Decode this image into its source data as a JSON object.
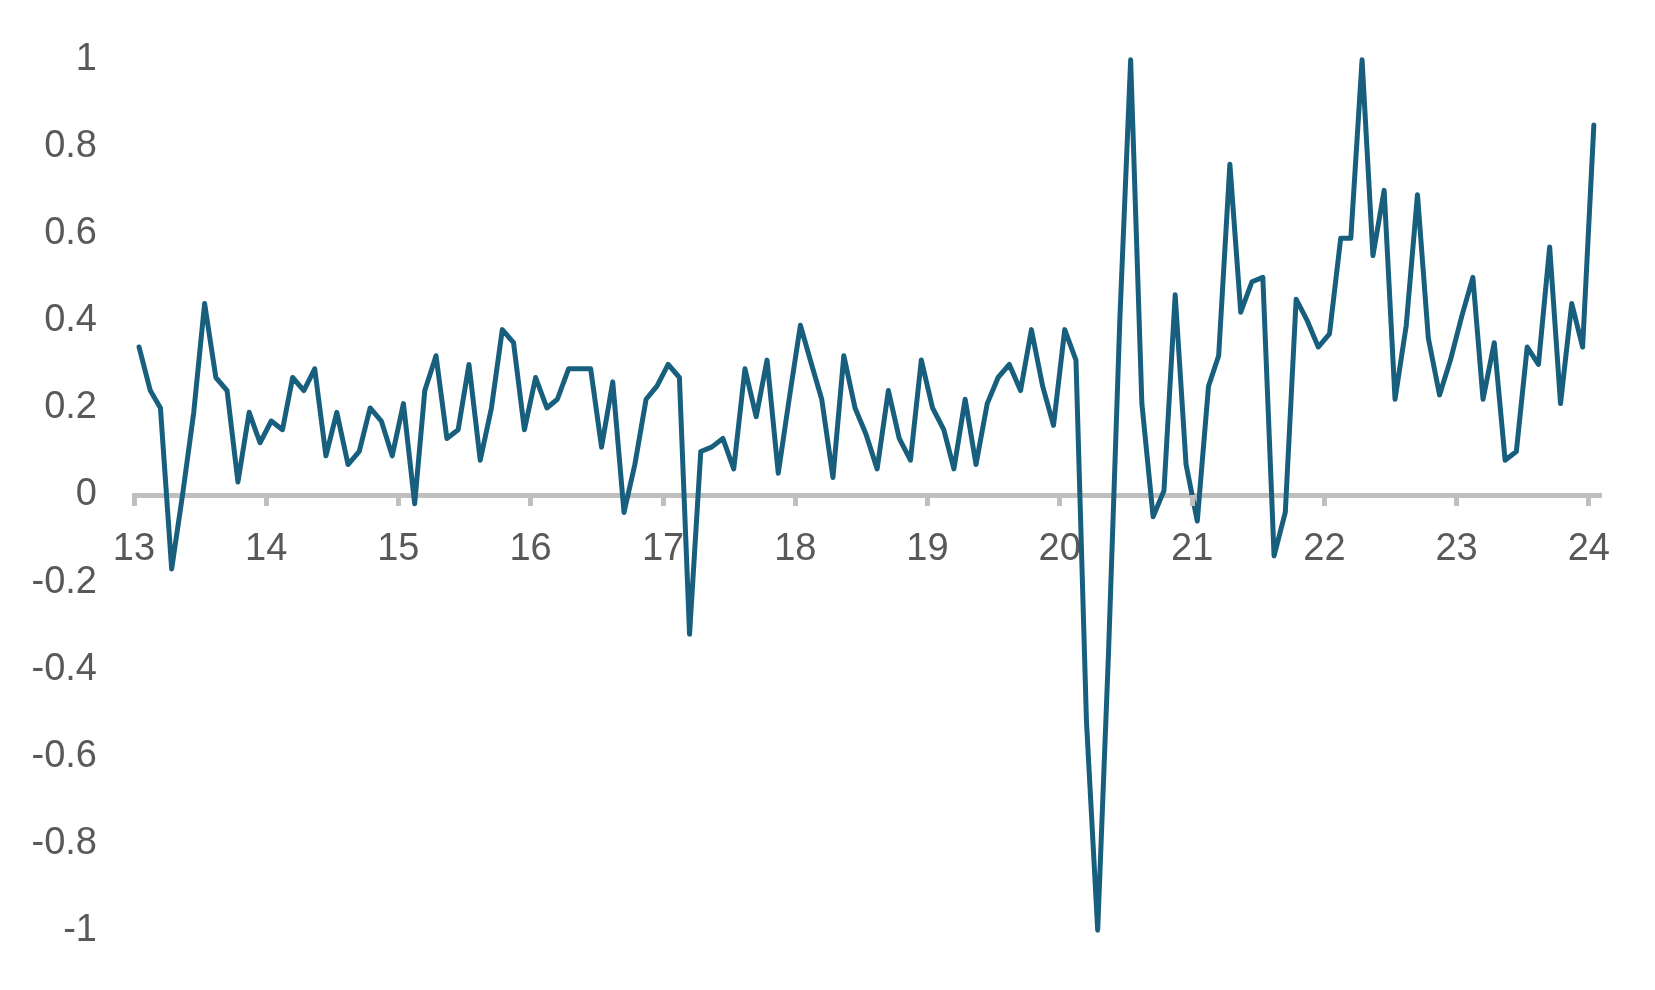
{
  "chart_data": {
    "type": "line",
    "x": [
      "2013-01-15",
      "2013-02-15",
      "2013-03-15",
      "2013-04-15",
      "2013-05-15",
      "2013-06-15",
      "2013-07-15",
      "2013-08-15",
      "2013-09-15",
      "2013-10-15",
      "2013-11-15",
      "2013-12-15",
      "2014-01-15",
      "2014-02-15",
      "2014-03-15",
      "2014-04-15",
      "2014-05-15",
      "2014-06-15",
      "2014-07-15",
      "2014-08-15",
      "2014-09-15",
      "2014-10-15",
      "2014-11-15",
      "2014-12-15",
      "2015-01-15",
      "2015-02-15",
      "2015-03-15",
      "2015-04-15",
      "2015-05-15",
      "2015-06-15",
      "2015-07-15",
      "2015-08-15",
      "2015-09-15",
      "2015-10-15",
      "2015-11-15",
      "2015-12-15",
      "2016-01-15",
      "2016-02-15",
      "2016-03-15",
      "2016-04-15",
      "2016-05-15",
      "2016-06-15",
      "2016-07-15",
      "2016-08-15",
      "2016-09-15",
      "2016-10-15",
      "2016-11-15",
      "2016-12-15",
      "2017-01-15",
      "2017-02-15",
      "2017-03-15",
      "2017-04-15",
      "2017-05-15",
      "2017-06-15",
      "2017-07-15",
      "2017-08-15",
      "2017-09-15",
      "2017-10-15",
      "2017-11-15",
      "2017-12-15",
      "2018-01-15",
      "2018-02-15",
      "2018-03-15",
      "2018-04-15",
      "2018-05-15",
      "2018-06-15",
      "2018-07-15",
      "2018-08-15",
      "2018-09-15",
      "2018-10-15",
      "2018-11-15",
      "2018-12-15",
      "2019-01-15",
      "2019-02-15",
      "2019-03-15",
      "2019-04-15",
      "2019-05-15",
      "2019-06-15",
      "2019-07-15",
      "2019-08-15",
      "2019-09-15",
      "2019-10-15",
      "2019-11-15",
      "2019-12-15",
      "2020-01-15",
      "2020-02-15",
      "2020-03-15",
      "2020-04-15",
      "2020-05-15",
      "2020-06-15",
      "2020-07-15",
      "2020-08-15",
      "2020-09-15",
      "2020-10-15",
      "2020-11-15",
      "2020-12-15",
      "2021-01-15",
      "2021-02-15",
      "2021-03-15",
      "2021-04-15",
      "2021-05-15",
      "2021-06-15",
      "2021-07-15",
      "2021-08-15",
      "2021-09-15",
      "2021-10-15",
      "2021-11-15",
      "2021-12-15",
      "2022-01-15",
      "2022-02-15",
      "2022-03-15",
      "2022-04-15",
      "2022-05-15",
      "2022-06-15",
      "2022-07-15",
      "2022-08-15",
      "2022-09-15",
      "2022-10-15",
      "2022-11-15",
      "2022-12-15",
      "2023-01-15",
      "2023-02-15",
      "2023-03-15",
      "2023-04-15",
      "2023-05-15",
      "2023-06-15",
      "2023-07-15",
      "2023-08-15",
      "2023-09-15",
      "2023-10-15",
      "2023-11-15",
      "2023-12-15",
      "2024-01-15"
    ],
    "series": [
      {
        "color": "#185f7e",
        "values": [
          0.34,
          0.24,
          0.2,
          -0.17,
          0.0,
          0.19,
          0.44,
          0.27,
          0.24,
          0.03,
          0.19,
          0.12,
          0.17,
          0.15,
          0.27,
          0.24,
          0.29,
          0.09,
          0.19,
          0.07,
          0.1,
          0.2,
          0.17,
          0.09,
          0.21,
          -0.02,
          0.24,
          0.32,
          0.13,
          0.15,
          0.3,
          0.08,
          0.2,
          0.38,
          0.35,
          0.15,
          0.27,
          0.2,
          0.22,
          0.29,
          0.29,
          0.29,
          0.11,
          0.26,
          -0.04,
          0.07,
          0.22,
          0.25,
          0.3,
          0.27,
          -0.32,
          0.1,
          0.11,
          0.13,
          0.06,
          0.29,
          0.18,
          0.31,
          0.05,
          0.22,
          0.39,
          0.3,
          0.22,
          0.04,
          0.32,
          0.2,
          0.14,
          0.06,
          0.24,
          0.13,
          0.08,
          0.31,
          0.2,
          0.15,
          0.06,
          0.22,
          0.07,
          0.21,
          0.27,
          0.3,
          0.24,
          0.38,
          0.25,
          0.16,
          0.38,
          0.31,
          -0.52,
          -1.0,
          -0.36,
          0.4,
          1.0,
          0.21,
          -0.05,
          0.01,
          0.46,
          0.07,
          -0.06,
          0.25,
          0.32,
          0.76,
          0.42,
          0.49,
          0.5,
          -0.14,
          -0.04,
          0.45,
          0.4,
          0.34,
          0.37,
          0.59,
          0.59,
          1.0,
          0.55,
          0.7,
          0.22,
          0.39,
          0.69,
          0.36,
          0.23,
          0.31,
          0.41,
          0.5,
          0.22,
          0.35,
          0.08,
          0.1,
          0.34,
          0.3,
          0.57,
          0.21,
          0.44,
          0.34,
          0.85
        ]
      }
    ],
    "xlim": [
      "2013-01",
      "2024-02"
    ],
    "xticks": [
      {
        "value": "2013-01",
        "label": "13"
      },
      {
        "value": "2014-01",
        "label": "14"
      },
      {
        "value": "2015-01",
        "label": "15"
      },
      {
        "value": "2016-01",
        "label": "16"
      },
      {
        "value": "2017-01",
        "label": "17"
      },
      {
        "value": "2018-01",
        "label": "18"
      },
      {
        "value": "2019-01",
        "label": "19"
      },
      {
        "value": "2020-01",
        "label": "20"
      },
      {
        "value": "2021-01",
        "label": "21"
      },
      {
        "value": "2022-01",
        "label": "22"
      },
      {
        "value": "2023-01",
        "label": "23"
      },
      {
        "value": "2024-01",
        "label": "24"
      }
    ],
    "ylim": [
      -1,
      1
    ],
    "yticks": [
      1,
      0.8,
      0.6,
      0.4,
      0.2,
      0,
      -0.2,
      -0.4,
      -0.6,
      -0.8,
      -1
    ]
  }
}
